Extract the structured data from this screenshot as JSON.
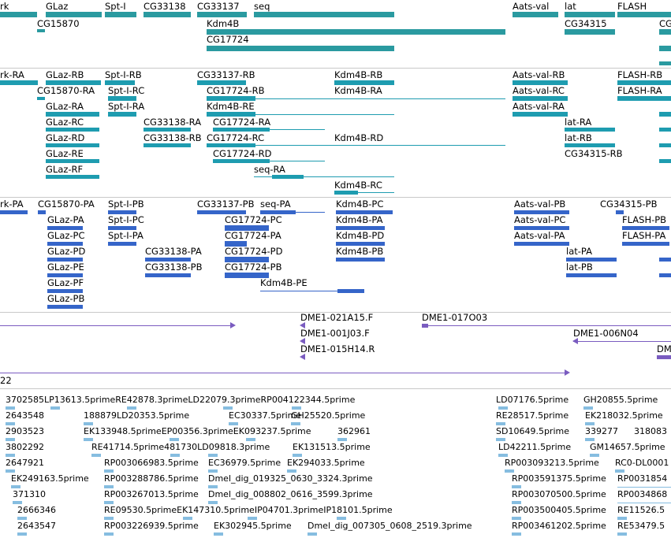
{
  "tracks": {
    "gene_labels": [
      "rk",
      "GLaz",
      "Spt-I",
      "CG33138",
      "CG33137",
      "seq",
      "Aats-val",
      "lat",
      "FLASH",
      "CG15870",
      "Kdm4B",
      "CG17724",
      "CG34315",
      "CG"
    ],
    "transcripts": [
      "rk-RA",
      "GLaz-RB",
      "Spt-I-RB",
      "CG33137-RB",
      "Kdm4B-RB",
      "Aats-val-RB",
      "FLASH-RB",
      "CG15870-RA",
      "Spt-I-RC",
      "CG17724-RB",
      "Kdm4B-RA",
      "Aats-val-RC",
      "FLASH-RA",
      "GLaz-RA",
      "Spt-I-RA",
      "Kdm4B-RE",
      "Aats-val-RA",
      "GLaz-RC",
      "CG33138-RA",
      "CG17724-RA",
      "lat-RA",
      "GLaz-RD",
      "CG33138-RB",
      "CG17724-RC",
      "Kdm4B-RD",
      "lat-RB",
      "GLaz-RE",
      "CG17724-RD",
      "CG34315-RB",
      "GLaz-RF",
      "seq-RA",
      "Kdm4B-RC"
    ],
    "proteins": [
      "rk-PA",
      "CG15870-PA",
      "Spt-I-PB",
      "CG33137-PB",
      "seq-PA",
      "Kdm4B-PC",
      "Aats-val-PB",
      "CG34315-PB",
      "GLaz-PA",
      "Spt-I-PC",
      "CG17724-PC",
      "Kdm4B-PA",
      "Aats-val-PC",
      "FLASH-PB",
      "GLaz-PC",
      "Spt-I-PA",
      "CG17724-PA",
      "Kdm4B-PD",
      "Aats-val-PA",
      "FLASH-PA",
      "GLaz-PD",
      "CG33138-PA",
      "CG17724-PD",
      "Kdm4B-PB",
      "lat-PA",
      "GLaz-PE",
      "CG33138-PB",
      "CG17724-PB",
      "lat-PB",
      "GLaz-PF",
      "Kdm4B-PE",
      "GLaz-PB"
    ],
    "clones": [
      "DME1-021A15.F",
      "DME1-017O03",
      "DME1-001J03.F",
      "DME1-006N04",
      "DME1-015H14.R",
      "DM",
      "22"
    ],
    "ests": [
      "3702585LP13613.5primeRE42878.3primeLD22079.3primeRP004122344.5prime",
      "LD07176.5prime",
      "GH20855.5prime",
      "2643548",
      "188879LD20353.5prime",
      "EC30337.5prime",
      "GH25520.5prime",
      "RE28517.5prime",
      "EK218032.5prime",
      "2903523",
      "EK133948.5primeEP00356.3primeEK093237.5prime",
      "362961",
      "SD10649.5prime",
      "339277",
      "318083",
      "3802292",
      "RE41714.5prime481730LD09818.3prime",
      "EK131513.5prime",
      "LD42211.5prime",
      "GM14657.5prime",
      "2647921",
      "RP003066983.5prime",
      "EC36979.5prime",
      "EK294033.5prime",
      "RP003093213.5prime",
      "RC0-DL0001",
      "EK249163.5prime",
      "RP003288786.5prime",
      "Dmel_dig_019325_0630_3324.3prime",
      "RP003591375.5prime",
      "RP0031854",
      "371310",
      "RP003267013.5prime",
      "Dmel_dig_008802_0616_3599.3prime",
      "RP003070500.5prime",
      "RP0034868",
      "2666346",
      "RE09530.5primeEK147310.5primeIP04701.3primeIP18101.5prime",
      "RP003500405.5prime",
      "RE11526.5",
      "2643547",
      "RP003226939.5prime",
      "EK302945.5prime",
      "Dmel_dig_007305_0608_2519.3prime",
      "RP003461202.5prime",
      "RE53479.5"
    ]
  },
  "colors": {
    "gene": "#2a9aa0",
    "transcript": "#1e9cb0",
    "protein": "#3565c9",
    "clone": "#7a5cc0",
    "est": "#86bde0"
  }
}
